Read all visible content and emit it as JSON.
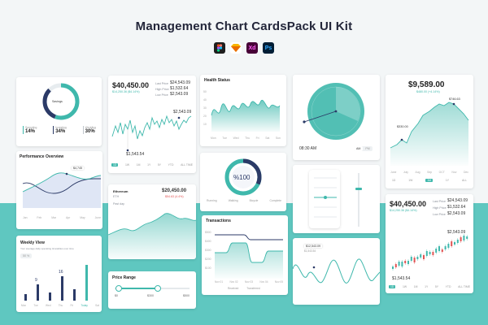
{
  "header": {
    "title": "Management Chart CardsPack UI Kit",
    "tools": [
      {
        "name": "figma-icon",
        "label": "",
        "color": "#1e1e1e"
      },
      {
        "name": "sketch-icon",
        "label": "",
        "color": "#f7b500"
      },
      {
        "name": "xd-icon",
        "label": "Xd",
        "color": "#470137"
      },
      {
        "name": "photoshop-icon",
        "label": "Ps",
        "color": "#001e36"
      }
    ]
  },
  "colors": {
    "accent": "#3fb8ac",
    "navy": "#2b3a67",
    "band": "#5fc7c0",
    "red": "#e25353"
  },
  "donut_card": {
    "center_label": "Savings",
    "stats": [
      {
        "label": "Spending",
        "value": "14%"
      },
      {
        "label": "Investing",
        "value": "34%"
      },
      {
        "label": "Wedding",
        "value": "30%"
      }
    ]
  },
  "price_card": {
    "value": "$40,450.00",
    "sub": "$14,250.36 ($4.14%)",
    "right": [
      {
        "label": "Last Price",
        "value": "$24,543.09"
      },
      {
        "label": "High Price",
        "value": "$1,532.64"
      },
      {
        "label": "Low Price",
        "value": "$2,543.09"
      }
    ],
    "peak_label": "$2,543.09",
    "low_label": "$1,543.54",
    "ranges": [
      "1D",
      "1W",
      "1M",
      "1Y",
      "5Y",
      "YTD",
      "ALL TIME"
    ]
  },
  "health_card": {
    "title": "Health Status",
    "y_labels": [
      "50",
      "40",
      "30",
      "20",
      "10"
    ],
    "x_labels": [
      "Mon",
      "Tue",
      "Wed",
      "Thu",
      "Fri",
      "Sat",
      "Sun"
    ]
  },
  "clock_card": {
    "time": "08:30 AM",
    "toggle": [
      "AM",
      "PM"
    ]
  },
  "btc_card": {
    "value": "$9,589.00",
    "sub": "$480.00 (+4.14%)",
    "peak": "$746.63",
    "low": "$330.00",
    "months": [
      "June",
      "July",
      "Aug",
      "Sep",
      "OCT",
      "Nov",
      "Dec"
    ],
    "ranges": [
      "1D",
      "1W",
      "1M",
      "1Y",
      "ALL"
    ]
  },
  "performance_card": {
    "title": "Performance Overview",
    "tip": "$4,745",
    "x_labels": [
      "Jan",
      "Feb",
      "Mar",
      "Apr",
      "May",
      "June"
    ]
  },
  "percent_card": {
    "center": "%100",
    "legend": [
      "Running",
      "Walking",
      "Bicycle",
      "Complete"
    ]
  },
  "ethereum_card": {
    "label": "Ethereum",
    "ticker": "ETH",
    "value": "$20,450.00",
    "change": "$54.63 (4.4%)",
    "sub": "Past day"
  },
  "transactions_card": {
    "title": "Transactions",
    "y_labels": [
      "$500",
      "$400",
      "$300",
      "$200",
      "$100"
    ],
    "x_labels": [
      "Nov 01",
      "Nov 02",
      "Nov 03",
      "Nov 04",
      "Nov 05"
    ],
    "legend": [
      "Received",
      "Transferred"
    ]
  },
  "weekly_card": {
    "title": "Weekly View",
    "sub": "Your average daily operating timetables over time",
    "filter": "50 %",
    "bars": [
      {
        "day": "Mon",
        "value": ""
      },
      {
        "day": "Tue",
        "value": "9"
      },
      {
        "day": "Wed",
        "value": ""
      },
      {
        "day": "Thu",
        "value": "16"
      },
      {
        "day": "Fri",
        "value": ""
      },
      {
        "day": "Today",
        "value": ""
      },
      {
        "day": "Sat",
        "value": ""
      }
    ]
  },
  "range_card": {
    "title": "Price Range",
    "labels": [
      "$0",
      "$300",
      "$500"
    ]
  },
  "wave_card": {
    "tip": "$12,543.09",
    "tip2": "$1,543.54"
  },
  "candle_card": {
    "value": "$40,450.00",
    "sub": "$14,250.36 ($4.14%)",
    "right": [
      {
        "label": "Last Price",
        "value": "$24,543.09"
      },
      {
        "label": "High Price",
        "value": "$1,532.64"
      },
      {
        "label": "Low Price",
        "value": "$2,543.09"
      }
    ],
    "peak": "$2,543.09",
    "low": "$1,543.54",
    "ranges": [
      "1D",
      "1W",
      "1M",
      "1Y",
      "5Y",
      "YTD",
      "ALL TIME"
    ]
  }
}
